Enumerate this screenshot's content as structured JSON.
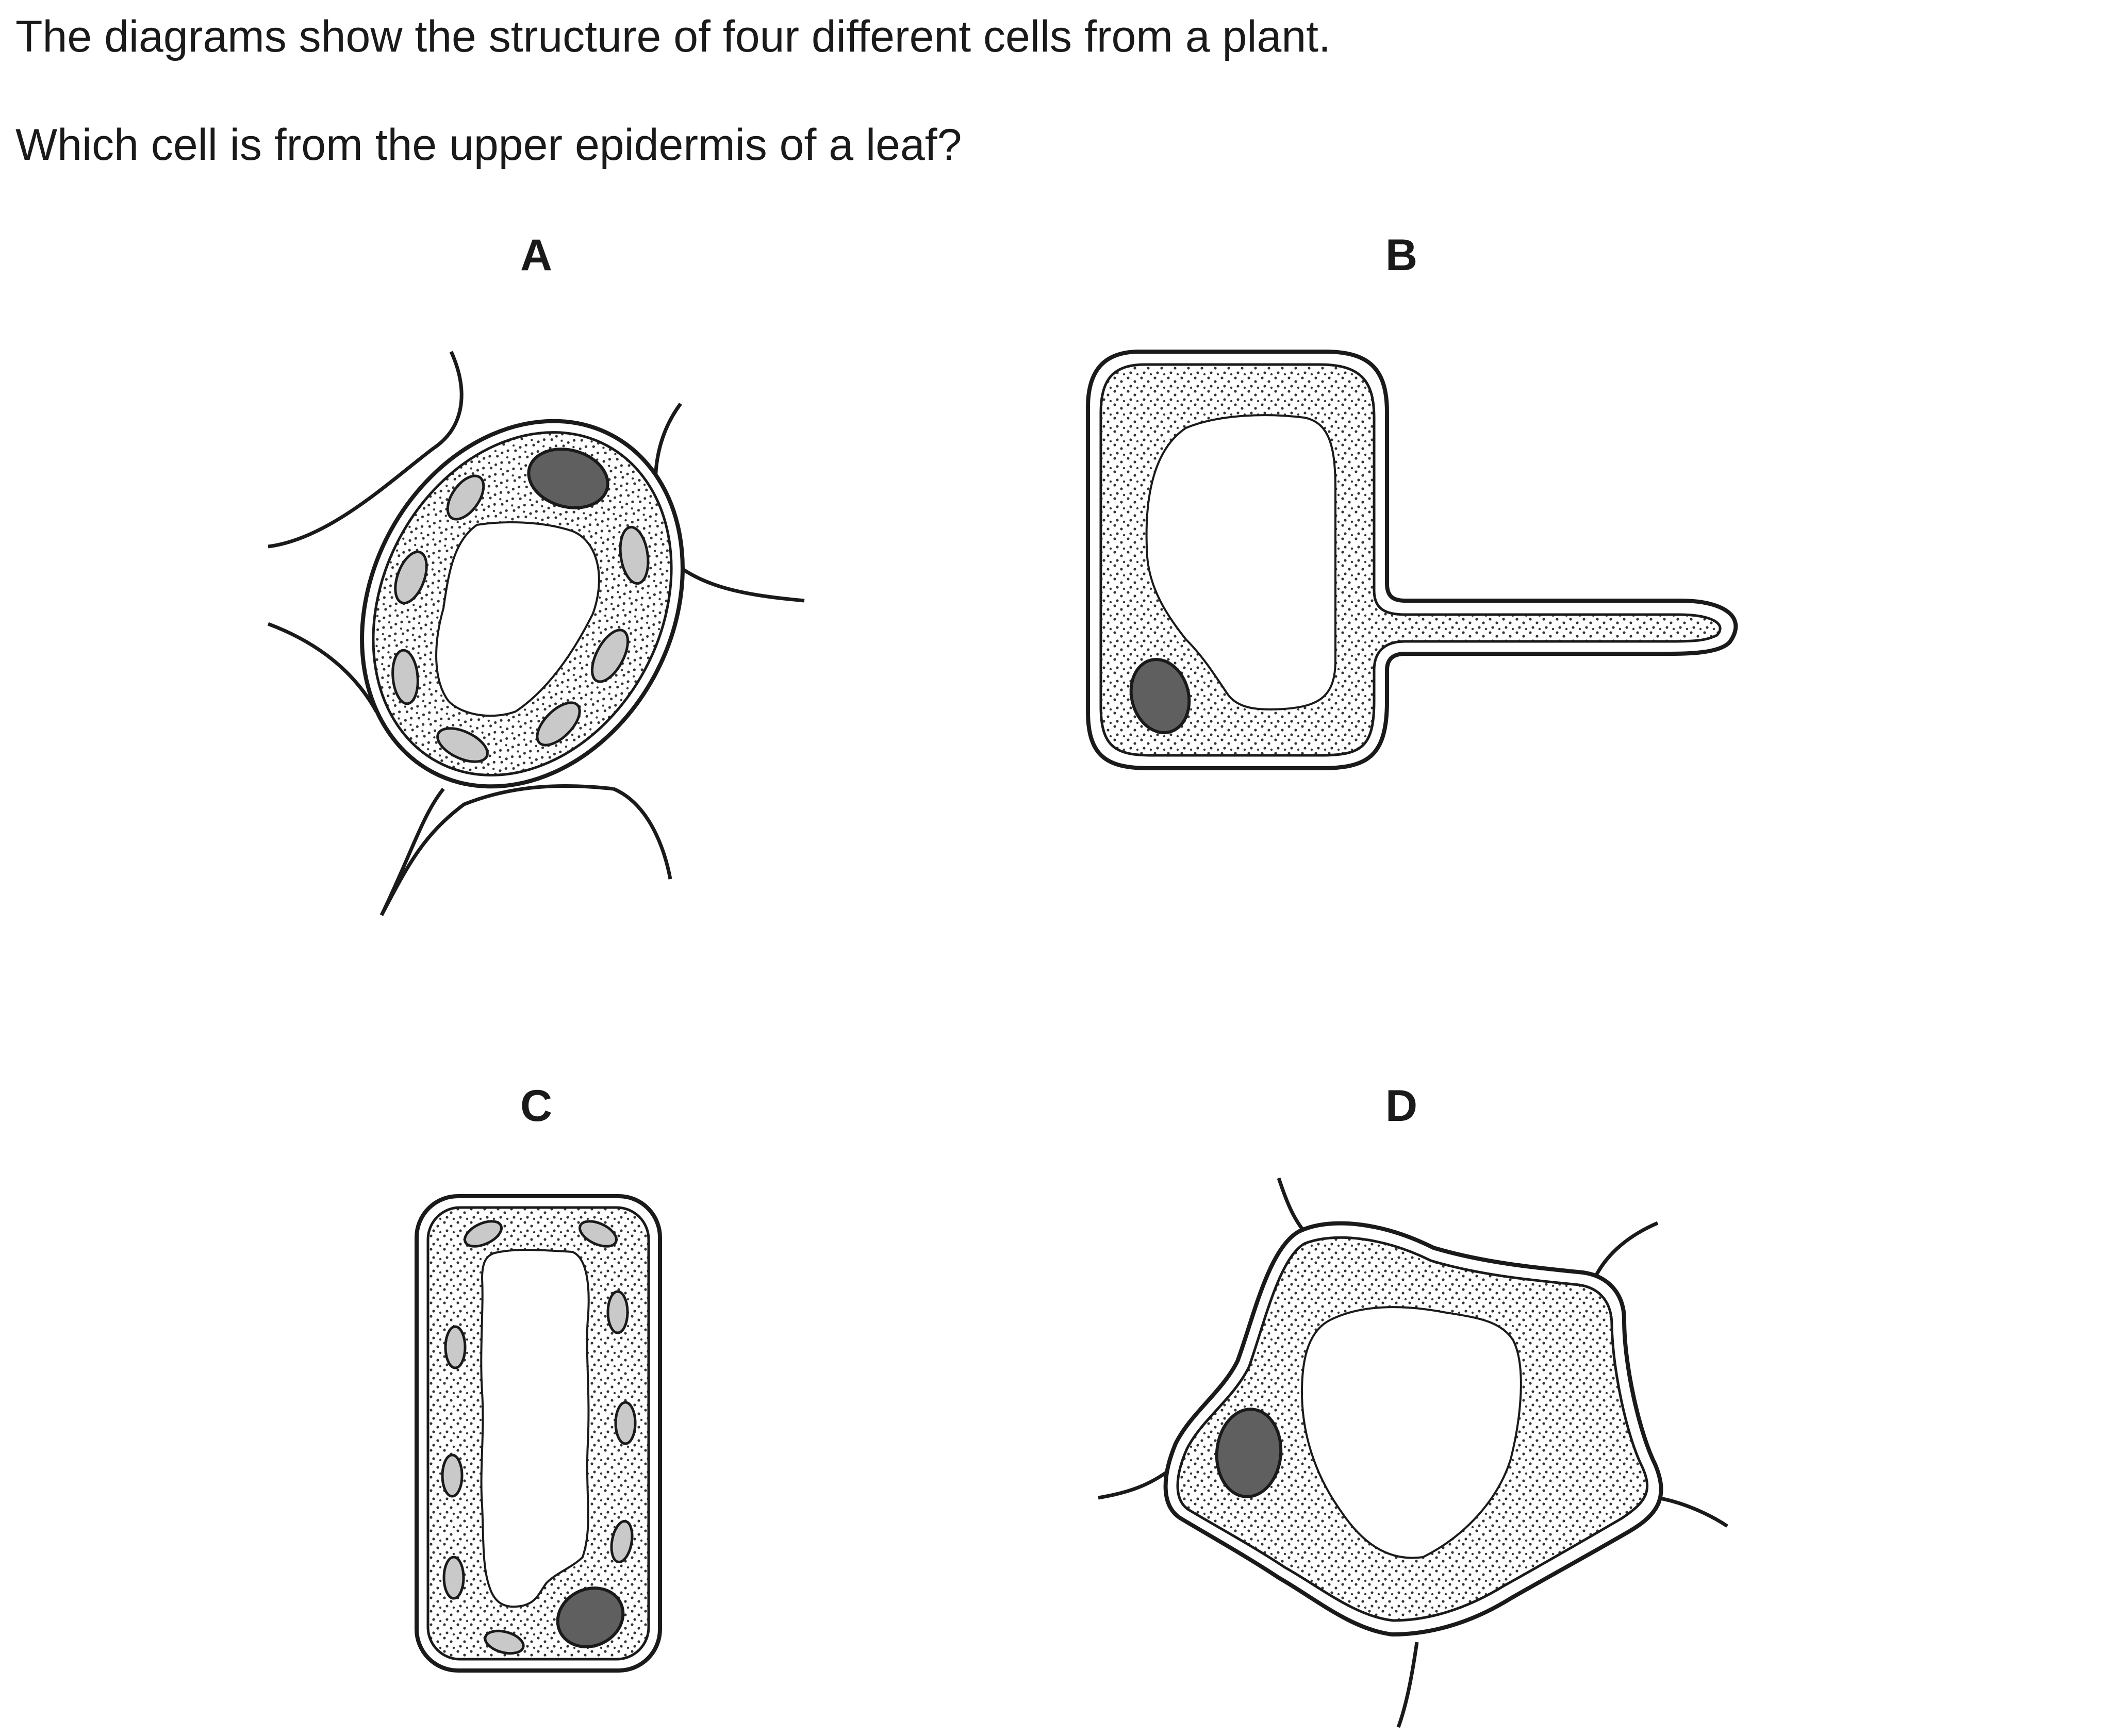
{
  "question": {
    "line1": "The diagrams show the structure of four different cells from a plant.",
    "line2": "Which cell is from the upper epidermis of a leaf?"
  },
  "options": {
    "a": "A",
    "b": "B",
    "c": "C",
    "d": "D"
  },
  "colors": {
    "outline": "#1a1a1a",
    "nucleus": "#5f5f5f",
    "chloroplast": "#c9c9c9",
    "cytoplasm_dots": "#333333"
  }
}
